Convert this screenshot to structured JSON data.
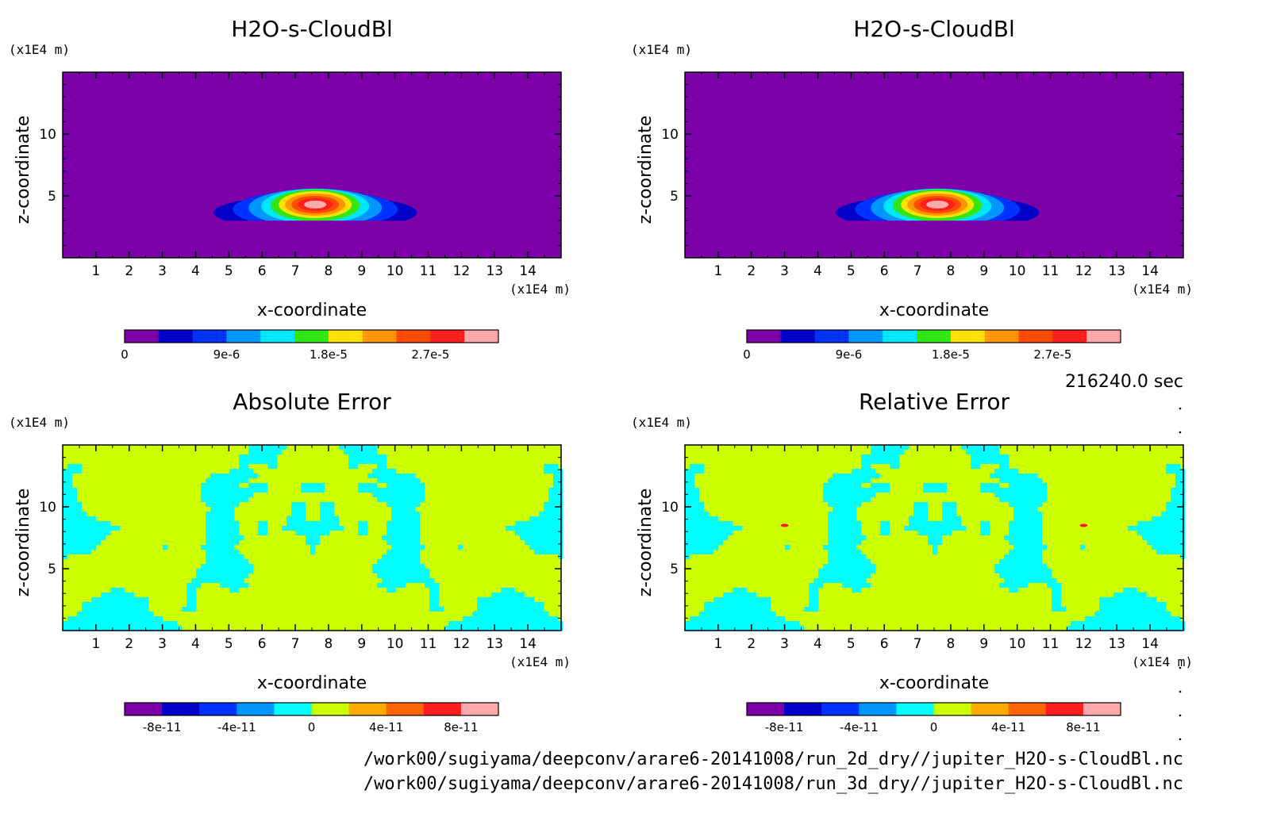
{
  "colors": {
    "cloud_scale": [
      "#7c00a8",
      "#0000c8",
      "#0032ff",
      "#0096ff",
      "#00e6ff",
      "#32e614",
      "#ffe100",
      "#ff9600",
      "#ff4b00",
      "#ff1e1e",
      "#ffaaaa"
    ],
    "error_scale": [
      "#7c00a8",
      "#0000c8",
      "#0032ff",
      "#0096ff",
      "#00ffff",
      "#ccff00",
      "#ffaa00",
      "#ff6400",
      "#ff1e1e",
      "#ffaaaa"
    ]
  },
  "time_label": "216240.0 sec",
  "file_paths": [
    "/work00/sugiyama/deepconv/arare6-20141008/run_2d_dry//jupiter_H2O-s-CloudBl.nc",
    "/work00/sugiyama/deepconv/arare6-20141008/run_3d_dry//jupiter_H2O-s-CloudBl.nc"
  ],
  "chart_data": [
    {
      "type": "heatmap",
      "title": "H2O-s-CloudBl",
      "xlabel": "x-coordinate",
      "ylabel": "z-coordinate",
      "x_unit": "(x1E4 m)",
      "y_unit": "(x1E4 m)",
      "xlim": [
        0,
        15
      ],
      "ylim": [
        0,
        15
      ],
      "x_ticks": [
        "1",
        "2",
        "3",
        "4",
        "5",
        "6",
        "7",
        "8",
        "9",
        "10",
        "11",
        "12",
        "13",
        "14"
      ],
      "y_ticks": [
        "5",
        "10"
      ],
      "colorbar_labels": [
        "0",
        "9e-6",
        "1.8e-5",
        "2.7e-5"
      ],
      "colorbar_values": [
        0,
        9e-06,
        1.8e-05,
        2.7e-05
      ],
      "cloud": {
        "center_x": 7.6,
        "center_z": 4.3,
        "max": 3.3e-05
      }
    },
    {
      "type": "heatmap",
      "title": "H2O-s-CloudBl",
      "xlabel": "x-coordinate",
      "ylabel": "z-coordinate",
      "x_unit": "(x1E4 m)",
      "y_unit": "(x1E4 m)",
      "xlim": [
        0,
        15
      ],
      "ylim": [
        0,
        15
      ],
      "x_ticks": [
        "1",
        "2",
        "3",
        "4",
        "5",
        "6",
        "7",
        "8",
        "9",
        "10",
        "11",
        "12",
        "13",
        "14"
      ],
      "y_ticks": [
        "5",
        "10"
      ],
      "colorbar_labels": [
        "0",
        "9e-6",
        "1.8e-5",
        "2.7e-5"
      ],
      "colorbar_values": [
        0,
        9e-06,
        1.8e-05,
        2.7e-05
      ],
      "cloud": {
        "center_x": 7.6,
        "center_z": 4.3,
        "max": 3.3e-05
      }
    },
    {
      "type": "heatmap",
      "title": "Absolute Error",
      "xlabel": "x-coordinate",
      "ylabel": "z-coordinate",
      "x_unit": "(x1E4 m)",
      "y_unit": "(x1E4 m)",
      "xlim": [
        0,
        15
      ],
      "ylim": [
        0,
        15
      ],
      "x_ticks": [
        "1",
        "2",
        "3",
        "4",
        "5",
        "6",
        "7",
        "8",
        "9",
        "10",
        "11",
        "12",
        "13",
        "14"
      ],
      "y_ticks": [
        "5",
        "10"
      ],
      "colorbar_labels": [
        "-8e-11",
        "-4e-11",
        "0",
        "4e-11",
        "8e-11"
      ],
      "colorbar_values": [
        -8e-11,
        -4e-11,
        0,
        4e-11,
        8e-11
      ],
      "value_range": [
        -1e-10,
        1e-10
      ]
    },
    {
      "type": "heatmap",
      "title": "Relative Error",
      "xlabel": "x-coordinate",
      "ylabel": "z-coordinate",
      "x_unit": "(x1E4 m)",
      "y_unit": "(x1E4 m)",
      "xlim": [
        0,
        15
      ],
      "ylim": [
        0,
        15
      ],
      "x_ticks": [
        "1",
        "2",
        "3",
        "4",
        "5",
        "6",
        "7",
        "8",
        "9",
        "10",
        "11",
        "12",
        "13",
        "14"
      ],
      "y_ticks": [
        "5",
        "10"
      ],
      "colorbar_labels": [
        "-8e-11",
        "-4e-11",
        "0",
        "4e-11",
        "8e-11"
      ],
      "colorbar_values": [
        -8e-11,
        -4e-11,
        0,
        4e-11,
        8e-11
      ],
      "value_range": [
        -1e-10,
        1e-10
      ],
      "hotspots": [
        {
          "x": 3.0,
          "z": 8.5
        },
        {
          "x": 12.0,
          "z": 8.5
        }
      ]
    }
  ]
}
